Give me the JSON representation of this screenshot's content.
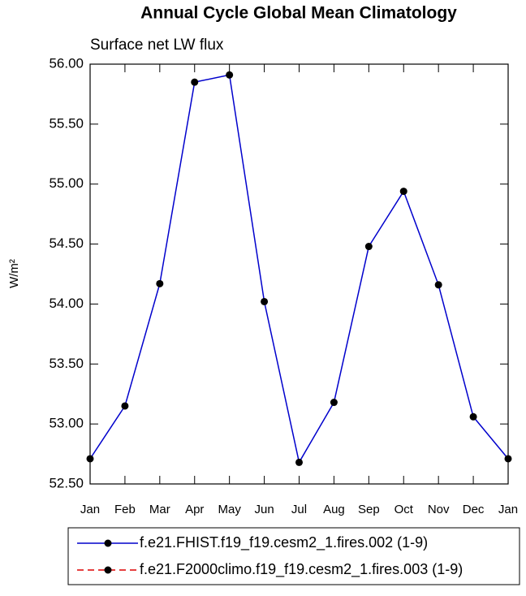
{
  "chart_data": {
    "type": "line",
    "title": "Annual Cycle Global Mean Climatology",
    "subtitle": "Surface net LW flux",
    "y_label": "W/m²",
    "categories": [
      "Jan",
      "Feb",
      "Mar",
      "Apr",
      "May",
      "Jun",
      "Jul",
      "Aug",
      "Sep",
      "Oct",
      "Nov",
      "Dec",
      "Jan"
    ],
    "series": [
      {
        "name": "f.e21.FHIST.f19_f19.cesm2_1.fires.002 (1-9)",
        "color": "#0000cc",
        "dash": "solid",
        "values": [
          52.71,
          53.15,
          54.17,
          55.85,
          55.91,
          54.02,
          52.68,
          53.18,
          54.48,
          54.94,
          54.16,
          53.06,
          52.71
        ]
      },
      {
        "name": "f.e21.F2000climo.f19_f19.cesm2_1.fires.003 (1-9)",
        "color": "#dd0000",
        "dash": "dashed",
        "values": [
          null,
          null,
          null,
          null,
          null,
          null,
          null,
          null,
          null,
          null,
          null,
          null,
          null
        ]
      }
    ],
    "ylim": [
      52.5,
      56.0
    ],
    "yticks": [
      {
        "value": 52.5,
        "label": "52.50"
      },
      {
        "value": 53.0,
        "label": "53.00"
      },
      {
        "value": 53.5,
        "label": "53.50"
      },
      {
        "value": 54.0,
        "label": "54.00"
      },
      {
        "value": 54.5,
        "label": "54.50"
      },
      {
        "value": 55.0,
        "label": "55.00"
      },
      {
        "value": 55.5,
        "label": "55.50"
      },
      {
        "value": 56.0,
        "label": "56.00"
      }
    ],
    "grid": false
  }
}
